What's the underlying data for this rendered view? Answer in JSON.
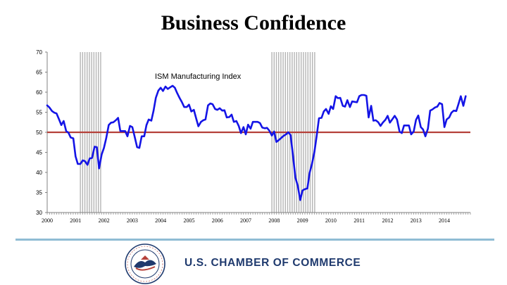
{
  "page": {
    "title": "Business Confidence"
  },
  "footer": {
    "organization": "U.S. CHAMBER OF COMMERCE",
    "seal_text": "U.S. CHAMBER OF COMMERCE OF THE UNITED STATES OF AMERICA"
  },
  "colors": {
    "series": "#1414e6",
    "reference_line": "#b5413a",
    "recession_shade": "#b4b4b4",
    "footer_text": "#1f3a6e",
    "divider": "#8fbcd4"
  },
  "chart_data": {
    "type": "line",
    "title": "",
    "annotation": "ISM Manufacturing Index",
    "xlabel": "",
    "ylabel": "",
    "xlim": [
      2000.0,
      2014.917
    ],
    "ylim": [
      30,
      70
    ],
    "yticks": [
      30,
      35,
      40,
      45,
      50,
      55,
      60,
      65,
      70
    ],
    "xtick_labels": [
      "2000",
      "2001",
      "2002",
      "2003",
      "2004",
      "2005",
      "2006",
      "2007",
      "2008",
      "2009",
      "2010",
      "2011",
      "2012",
      "2013",
      "2014"
    ],
    "grid": false,
    "legend": "none",
    "reference_line": {
      "y": 50
    },
    "shaded_periods": [
      {
        "start": 2001.17,
        "end": 2001.92,
        "label": "recession"
      },
      {
        "start": 2007.92,
        "end": 2009.5,
        "label": "recession"
      }
    ],
    "series": [
      {
        "values": [
          [
            2000.0,
            56.7
          ],
          [
            2000.08,
            56.2
          ],
          [
            2000.17,
            55.3
          ],
          [
            2000.25,
            54.9
          ],
          [
            2000.33,
            54.7
          ],
          [
            2000.42,
            53.2
          ],
          [
            2000.5,
            51.8
          ],
          [
            2000.58,
            52.8
          ],
          [
            2000.67,
            50.3
          ],
          [
            2000.75,
            49.9
          ],
          [
            2000.83,
            48.7
          ],
          [
            2000.92,
            48.5
          ],
          [
            2001.0,
            44.0
          ],
          [
            2001.08,
            42.1
          ],
          [
            2001.17,
            42.1
          ],
          [
            2001.25,
            43.0
          ],
          [
            2001.33,
            42.8
          ],
          [
            2001.42,
            41.9
          ],
          [
            2001.5,
            43.5
          ],
          [
            2001.58,
            43.6
          ],
          [
            2001.67,
            46.4
          ],
          [
            2001.75,
            46.3
          ],
          [
            2001.83,
            41.0
          ],
          [
            2001.92,
            44.5
          ],
          [
            2002.0,
            46.1
          ],
          [
            2002.08,
            48.5
          ],
          [
            2002.17,
            51.8
          ],
          [
            2002.25,
            52.4
          ],
          [
            2002.33,
            52.5
          ],
          [
            2002.42,
            53.0
          ],
          [
            2002.5,
            53.6
          ],
          [
            2002.58,
            50.3
          ],
          [
            2002.67,
            50.3
          ],
          [
            2002.75,
            50.3
          ],
          [
            2002.83,
            49.0
          ],
          [
            2002.92,
            51.6
          ],
          [
            2003.0,
            51.3
          ],
          [
            2003.08,
            49.0
          ],
          [
            2003.17,
            46.3
          ],
          [
            2003.25,
            46.1
          ],
          [
            2003.33,
            49.0
          ],
          [
            2003.42,
            49.0
          ],
          [
            2003.5,
            51.8
          ],
          [
            2003.58,
            53.2
          ],
          [
            2003.67,
            52.9
          ],
          [
            2003.75,
            55.4
          ],
          [
            2003.83,
            58.6
          ],
          [
            2003.92,
            60.4
          ],
          [
            2004.0,
            61.1
          ],
          [
            2004.08,
            60.3
          ],
          [
            2004.17,
            61.4
          ],
          [
            2004.25,
            60.8
          ],
          [
            2004.33,
            61.2
          ],
          [
            2004.42,
            61.6
          ],
          [
            2004.5,
            61.1
          ],
          [
            2004.58,
            59.8
          ],
          [
            2004.67,
            58.5
          ],
          [
            2004.75,
            57.5
          ],
          [
            2004.83,
            56.3
          ],
          [
            2004.92,
            56.3
          ],
          [
            2005.0,
            56.9
          ],
          [
            2005.08,
            55.2
          ],
          [
            2005.17,
            55.6
          ],
          [
            2005.25,
            53.5
          ],
          [
            2005.33,
            51.5
          ],
          [
            2005.42,
            52.6
          ],
          [
            2005.5,
            53.0
          ],
          [
            2005.58,
            53.2
          ],
          [
            2005.67,
            56.7
          ],
          [
            2005.75,
            57.2
          ],
          [
            2005.83,
            57.0
          ],
          [
            2005.92,
            55.8
          ],
          [
            2006.0,
            55.6
          ],
          [
            2006.08,
            56.0
          ],
          [
            2006.17,
            55.4
          ],
          [
            2006.25,
            55.5
          ],
          [
            2006.33,
            53.7
          ],
          [
            2006.42,
            53.8
          ],
          [
            2006.5,
            54.4
          ],
          [
            2006.58,
            52.6
          ],
          [
            2006.67,
            52.8
          ],
          [
            2006.75,
            51.6
          ],
          [
            2006.83,
            49.8
          ],
          [
            2006.92,
            51.3
          ],
          [
            2007.0,
            49.5
          ],
          [
            2007.08,
            51.9
          ],
          [
            2007.17,
            50.9
          ],
          [
            2007.25,
            52.6
          ],
          [
            2007.33,
            52.6
          ],
          [
            2007.42,
            52.6
          ],
          [
            2007.5,
            52.3
          ],
          [
            2007.58,
            51.2
          ],
          [
            2007.67,
            51.0
          ],
          [
            2007.75,
            51.1
          ],
          [
            2007.83,
            50.4
          ],
          [
            2007.92,
            49.2
          ],
          [
            2008.0,
            50.2
          ],
          [
            2008.08,
            47.6
          ],
          [
            2008.17,
            48.1
          ],
          [
            2008.25,
            48.6
          ],
          [
            2008.33,
            49.1
          ],
          [
            2008.42,
            49.5
          ],
          [
            2008.5,
            50.0
          ],
          [
            2008.58,
            49.3
          ],
          [
            2008.67,
            43.8
          ],
          [
            2008.75,
            38.7
          ],
          [
            2008.83,
            36.7
          ],
          [
            2008.92,
            33.1
          ],
          [
            2009.0,
            35.5
          ],
          [
            2009.08,
            35.8
          ],
          [
            2009.17,
            36.0
          ],
          [
            2009.25,
            39.9
          ],
          [
            2009.33,
            42.0
          ],
          [
            2009.42,
            45.1
          ],
          [
            2009.5,
            49.2
          ],
          [
            2009.58,
            53.5
          ],
          [
            2009.67,
            53.6
          ],
          [
            2009.75,
            55.2
          ],
          [
            2009.83,
            55.8
          ],
          [
            2009.92,
            54.6
          ],
          [
            2010.0,
            56.5
          ],
          [
            2010.08,
            55.8
          ],
          [
            2010.17,
            59.0
          ],
          [
            2010.25,
            58.5
          ],
          [
            2010.33,
            58.6
          ],
          [
            2010.42,
            56.6
          ],
          [
            2010.5,
            56.4
          ],
          [
            2010.58,
            58.0
          ],
          [
            2010.67,
            56.3
          ],
          [
            2010.75,
            57.7
          ],
          [
            2010.83,
            57.6
          ],
          [
            2010.92,
            57.5
          ],
          [
            2011.0,
            59.0
          ],
          [
            2011.08,
            59.3
          ],
          [
            2011.17,
            59.3
          ],
          [
            2011.25,
            59.1
          ],
          [
            2011.33,
            53.7
          ],
          [
            2011.42,
            56.6
          ],
          [
            2011.5,
            52.9
          ],
          [
            2011.58,
            53.0
          ],
          [
            2011.67,
            52.5
          ],
          [
            2011.75,
            51.6
          ],
          [
            2011.83,
            52.4
          ],
          [
            2011.92,
            53.1
          ],
          [
            2012.0,
            54.1
          ],
          [
            2012.08,
            52.4
          ],
          [
            2012.17,
            53.3
          ],
          [
            2012.25,
            54.1
          ],
          [
            2012.33,
            53.2
          ],
          [
            2012.42,
            50.2
          ],
          [
            2012.5,
            49.8
          ],
          [
            2012.58,
            51.7
          ],
          [
            2012.67,
            51.7
          ],
          [
            2012.75,
            51.7
          ],
          [
            2012.83,
            49.5
          ],
          [
            2012.92,
            50.2
          ],
          [
            2013.0,
            53.1
          ],
          [
            2013.08,
            54.2
          ],
          [
            2013.17,
            51.3
          ],
          [
            2013.25,
            50.7
          ],
          [
            2013.33,
            49.0
          ],
          [
            2013.42,
            50.9
          ],
          [
            2013.5,
            55.4
          ],
          [
            2013.58,
            55.7
          ],
          [
            2013.67,
            56.2
          ],
          [
            2013.75,
            56.4
          ],
          [
            2013.83,
            57.3
          ],
          [
            2013.92,
            57.0
          ],
          [
            2014.0,
            51.3
          ],
          [
            2014.08,
            53.2
          ],
          [
            2014.17,
            53.7
          ],
          [
            2014.25,
            54.9
          ],
          [
            2014.33,
            55.4
          ],
          [
            2014.42,
            55.3
          ],
          [
            2014.5,
            57.1
          ],
          [
            2014.58,
            59.0
          ],
          [
            2014.67,
            56.6
          ],
          [
            2014.75,
            59.0
          ]
        ]
      }
    ]
  }
}
